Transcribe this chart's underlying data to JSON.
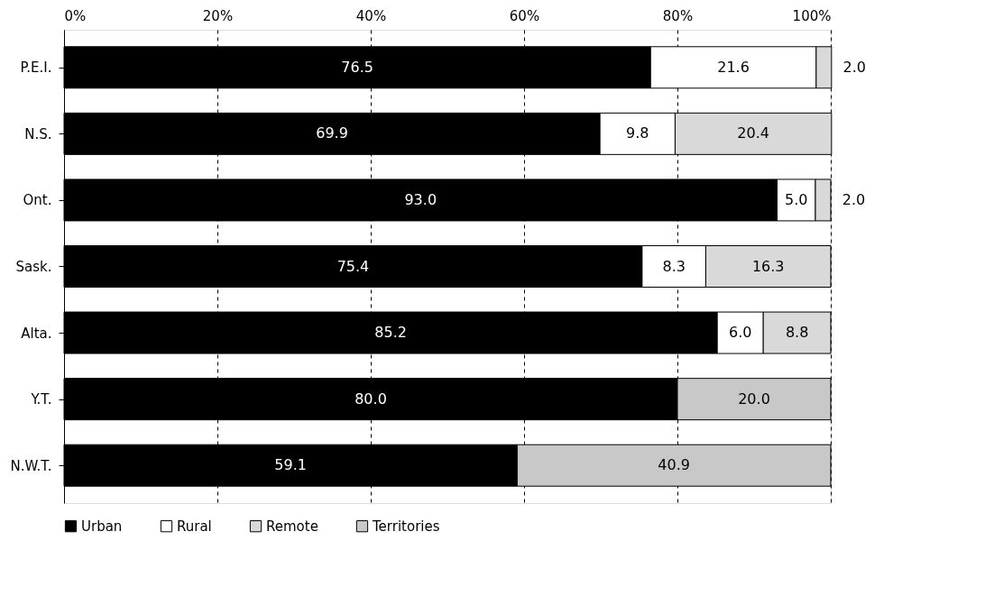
{
  "chart_data": {
    "type": "bar",
    "orientation": "horizontal",
    "stacked": true,
    "categories": [
      "P.E.I.",
      "N.S.",
      "Ont.",
      "Sask.",
      "Alta.",
      "Y.T.",
      "N.W.T."
    ],
    "series": [
      {
        "name": "Urban",
        "color": "#000000",
        "values": [
          76.5,
          69.9,
          93.0,
          75.4,
          85.2,
          80.0,
          59.1
        ],
        "value_labels": [
          "76.5",
          "69.9",
          "93.0",
          "75.4",
          "85.2",
          "80.0",
          "59.1"
        ]
      },
      {
        "name": "Rural",
        "color": "#ffffff",
        "values": [
          21.6,
          9.8,
          5.0,
          8.3,
          6.0,
          null,
          null
        ],
        "value_labels": [
          "21.6",
          "9.8",
          "5.0",
          "8.3",
          "6.0",
          null,
          null
        ]
      },
      {
        "name": "Remote",
        "color": "#d9d9d9",
        "values": [
          2.0,
          20.4,
          2.0,
          16.3,
          8.8,
          null,
          null
        ],
        "value_labels": [
          "2.0",
          "20.4",
          "2.0",
          "16.3",
          "8.8",
          null,
          null
        ]
      },
      {
        "name": "Territories",
        "color": "#c8c8c8",
        "values": [
          null,
          null,
          null,
          null,
          null,
          20.0,
          40.9
        ],
        "value_labels": [
          null,
          null,
          null,
          null,
          null,
          "20.0",
          "40.9"
        ]
      }
    ],
    "xlim": [
      0,
      100
    ],
    "xticks": [
      {
        "value": 0,
        "label": "0%"
      },
      {
        "value": 20,
        "label": "20%"
      },
      {
        "value": 40,
        "label": "40%"
      },
      {
        "value": 60,
        "label": "60%"
      },
      {
        "value": 80,
        "label": "80%"
      },
      {
        "value": 100,
        "label": "100%"
      }
    ],
    "grid": "x",
    "legend": "bottom"
  }
}
